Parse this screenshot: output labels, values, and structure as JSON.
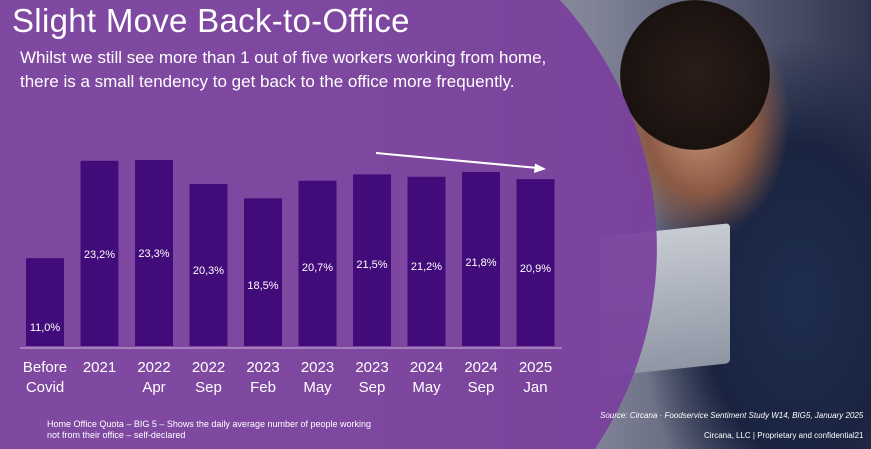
{
  "title": "Slight Move Back-to-Office",
  "subtitle_line1": "Whilst we still see more than 1 out of five workers working from home,",
  "subtitle_line2": "there is a small tendency to get back to the office more frequently.",
  "footnote_line1": "Home Office Quota – BIG 5 – Shows the daily average number of people working",
  "footnote_line2": "not from their office – self-declared",
  "source": "Source: Circana · Foodservice Sentiment Study W14, BIG5, January 2025",
  "proprietary": "Circana, LLC |  Proprietary and confidential",
  "page_number": "21",
  "colors": {
    "overlay": "#7a3f9e",
    "bar": "#420b7a",
    "text": "#ffffff"
  },
  "chart_data": {
    "type": "bar",
    "categories": [
      [
        "Before",
        "Covid"
      ],
      [
        "2021",
        ""
      ],
      [
        "2022",
        "Apr"
      ],
      [
        "2022",
        "Sep"
      ],
      [
        "2023",
        "Feb"
      ],
      [
        "2023",
        "May"
      ],
      [
        "2023",
        "Sep"
      ],
      [
        "2024",
        "May"
      ],
      [
        "2024",
        "Sep"
      ],
      [
        "2025",
        "Jan"
      ]
    ],
    "values": [
      11.0,
      23.2,
      23.3,
      20.3,
      18.5,
      20.7,
      21.5,
      21.2,
      21.8,
      20.9
    ],
    "value_labels": [
      "11,0%",
      "23,2%",
      "23,3%",
      "20,3%",
      "18,5%",
      "20,7%",
      "21,5%",
      "21,2%",
      "21,8%",
      "20,9%"
    ],
    "ylim": [
      0,
      25
    ],
    "annotation": "trend-arrow-decreasing"
  }
}
